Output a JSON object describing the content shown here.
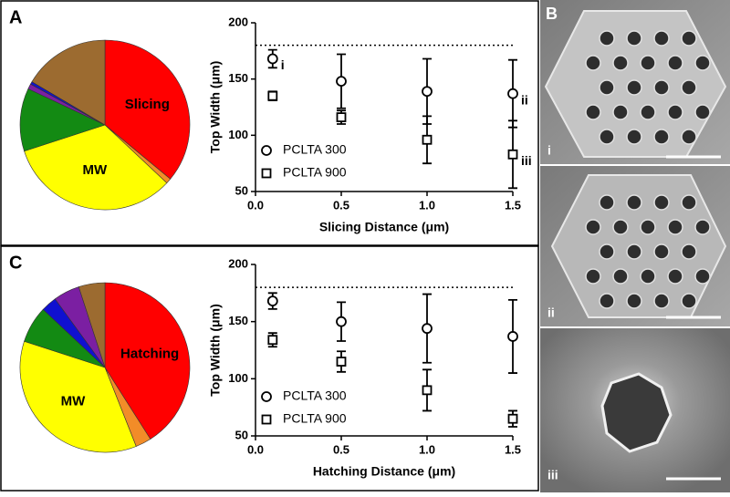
{
  "chart_data": [
    {
      "type": "pie",
      "panel": "A",
      "categories": [
        "Slicing",
        null,
        "MW",
        null,
        null,
        null,
        null
      ],
      "values": [
        36,
        1,
        33,
        12,
        1,
        0.5,
        16.5
      ],
      "colors": [
        "#ff0000",
        "#f28c28",
        "#ffff00",
        "#138a13",
        "#7b1fa2",
        "#1010d0",
        "#9c6b30"
      ]
    },
    {
      "type": "errorbar",
      "xlabel": "Slicing Distance (μm)",
      "ylabel": "Top Width (μm)",
      "x": [
        0.1,
        0.5,
        1.0,
        1.5
      ],
      "series": [
        {
          "name": "PCLTA 300",
          "marker": "circle",
          "color": "#000000",
          "values": [
            168,
            148,
            139,
            137
          ],
          "errors": [
            8,
            24,
            29,
            30
          ],
          "point_labels": [
            "i",
            null,
            null,
            "ii"
          ]
        },
        {
          "name": "PCLTA 900",
          "marker": "square",
          "color": "#000000",
          "values": [
            135,
            116,
            96,
            83
          ],
          "errors": [
            4,
            6,
            21,
            30
          ],
          "point_labels": [
            null,
            null,
            null,
            "iii"
          ]
        }
      ],
      "reference_line": 180,
      "xlim": [
        0,
        1.5
      ],
      "xticks": [
        {
          "value": 0,
          "label": "0.0"
        },
        0.5,
        {
          "value": 1,
          "label": "1.0"
        },
        1.5
      ],
      "ylim": [
        50,
        200
      ],
      "yticks": [
        50,
        100,
        150,
        200
      ]
    },
    {
      "type": "pie",
      "panel": "C",
      "categories": [
        "Hatching",
        null,
        "MW",
        null,
        null,
        null,
        null
      ],
      "values": [
        41,
        3,
        36,
        7,
        3,
        5,
        5
      ],
      "colors": [
        "#ff0000",
        "#f28c28",
        "#ffff00",
        "#138a13",
        "#1010d0",
        "#7b1fa2",
        "#9c6b30"
      ]
    },
    {
      "type": "errorbar",
      "xlabel": "Hatching Distance (μm)",
      "ylabel": "Top Width (μm)",
      "x": [
        0.1,
        0.5,
        1.0,
        1.5
      ],
      "series": [
        {
          "name": "PCLTA 300",
          "marker": "circle",
          "color": "#000000",
          "values": [
            168,
            150,
            144,
            137
          ],
          "errors": [
            7,
            17,
            30,
            32
          ]
        },
        {
          "name": "PCLTA 900",
          "marker": "square",
          "color": "#000000",
          "values": [
            134,
            115,
            90,
            65
          ],
          "errors": [
            6,
            9,
            18,
            7
          ]
        }
      ],
      "reference_line": 180,
      "xlim": [
        0,
        1.5
      ],
      "xticks": [
        {
          "value": 0,
          "label": "0.0"
        },
        0.5,
        {
          "value": 1,
          "label": "1.0"
        },
        1.5
      ],
      "ylim": [
        50,
        200
      ],
      "yticks": [
        50,
        100,
        150,
        200
      ]
    }
  ],
  "image_panel": {
    "panel": "B",
    "labels": [
      "i",
      "ii",
      "iii"
    ]
  }
}
